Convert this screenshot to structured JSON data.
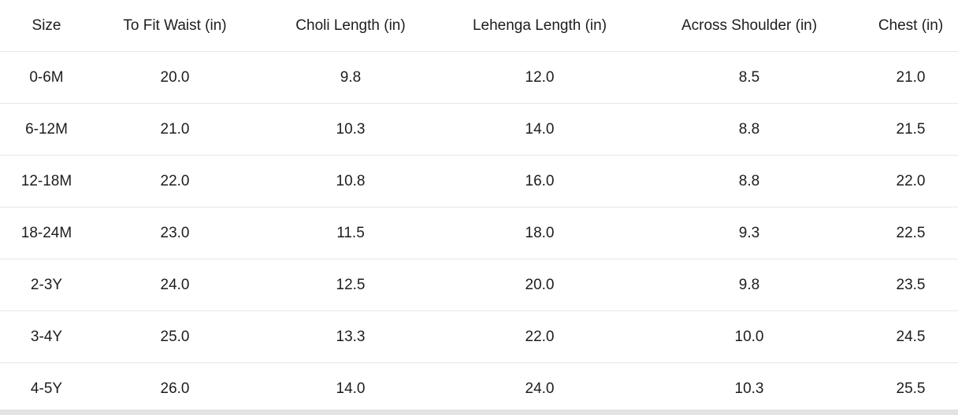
{
  "chart_data": {
    "type": "table",
    "columns": [
      "Size",
      "To Fit Waist (in)",
      "Choli Length (in)",
      "Lehenga Length (in)",
      "Across Shoulder (in)",
      "Chest (in)"
    ],
    "rows": [
      [
        "0-6M",
        "20.0",
        "9.8",
        "12.0",
        "8.5",
        "21.0"
      ],
      [
        "6-12M",
        "21.0",
        "10.3",
        "14.0",
        "8.8",
        "21.5"
      ],
      [
        "12-18M",
        "22.0",
        "10.8",
        "16.0",
        "8.8",
        "22.0"
      ],
      [
        "18-24M",
        "23.0",
        "11.5",
        "18.0",
        "9.3",
        "22.5"
      ],
      [
        "2-3Y",
        "24.0",
        "12.5",
        "20.0",
        "9.8",
        "23.5"
      ],
      [
        "3-4Y",
        "25.0",
        "13.3",
        "22.0",
        "10.0",
        "24.5"
      ],
      [
        "4-5Y",
        "26.0",
        "14.0",
        "24.0",
        "10.3",
        "25.5"
      ]
    ],
    "layout": {
      "grid": "horizontal-row-dividers",
      "header_position": "top",
      "text_align": "center"
    }
  },
  "colors": {
    "text": "#1d1d1d",
    "divider": "#e7e7e7",
    "scrollbar_track": "#e3e3e3",
    "background": "#ffffff"
  }
}
